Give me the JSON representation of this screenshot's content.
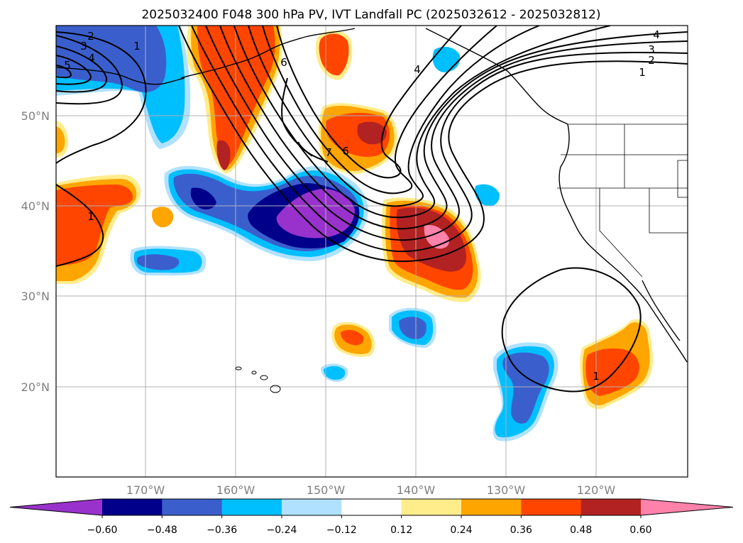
{
  "title": "2025032400 F048 300 hPa PV, IVT Landfall PC (2025032612 - 2025032812)",
  "map": {
    "lat_labels": [
      "50°N",
      "40°N",
      "30°N",
      "20°N"
    ],
    "lon_labels": [
      "170°W",
      "160°W",
      "150°W",
      "140°W",
      "130°W",
      "120°W"
    ]
  },
  "contour_labels": [
    "2",
    "3",
    "4",
    "5",
    "1",
    "6",
    "4",
    "3",
    "2",
    "1",
    "4",
    "7",
    "6",
    "1",
    "1"
  ],
  "colorbar": {
    "ticks": [
      "−0.60",
      "−0.48",
      "−0.36",
      "−0.24",
      "−0.12",
      "0.12",
      "0.24",
      "0.36",
      "0.48",
      "0.60"
    ],
    "colors": [
      "#9932cc",
      "#00008b",
      "#3a5fcd",
      "#00bfff",
      "#b0e2ff",
      "#ffffff",
      "#ffec8b",
      "#ffa500",
      "#ff4500",
      "#b22222",
      "#ff82ab"
    ]
  },
  "palette": {
    "purple": "#9932cc",
    "navy": "#00008b",
    "blue": "#3a5fcd",
    "sky": "#00bfff",
    "light_sky": "#b0e2ff",
    "yellow": "#ffec8b",
    "orange": "#ffa500",
    "red_orange": "#ff4500",
    "firebrick": "#b22222",
    "pink": "#ff82ab"
  }
}
